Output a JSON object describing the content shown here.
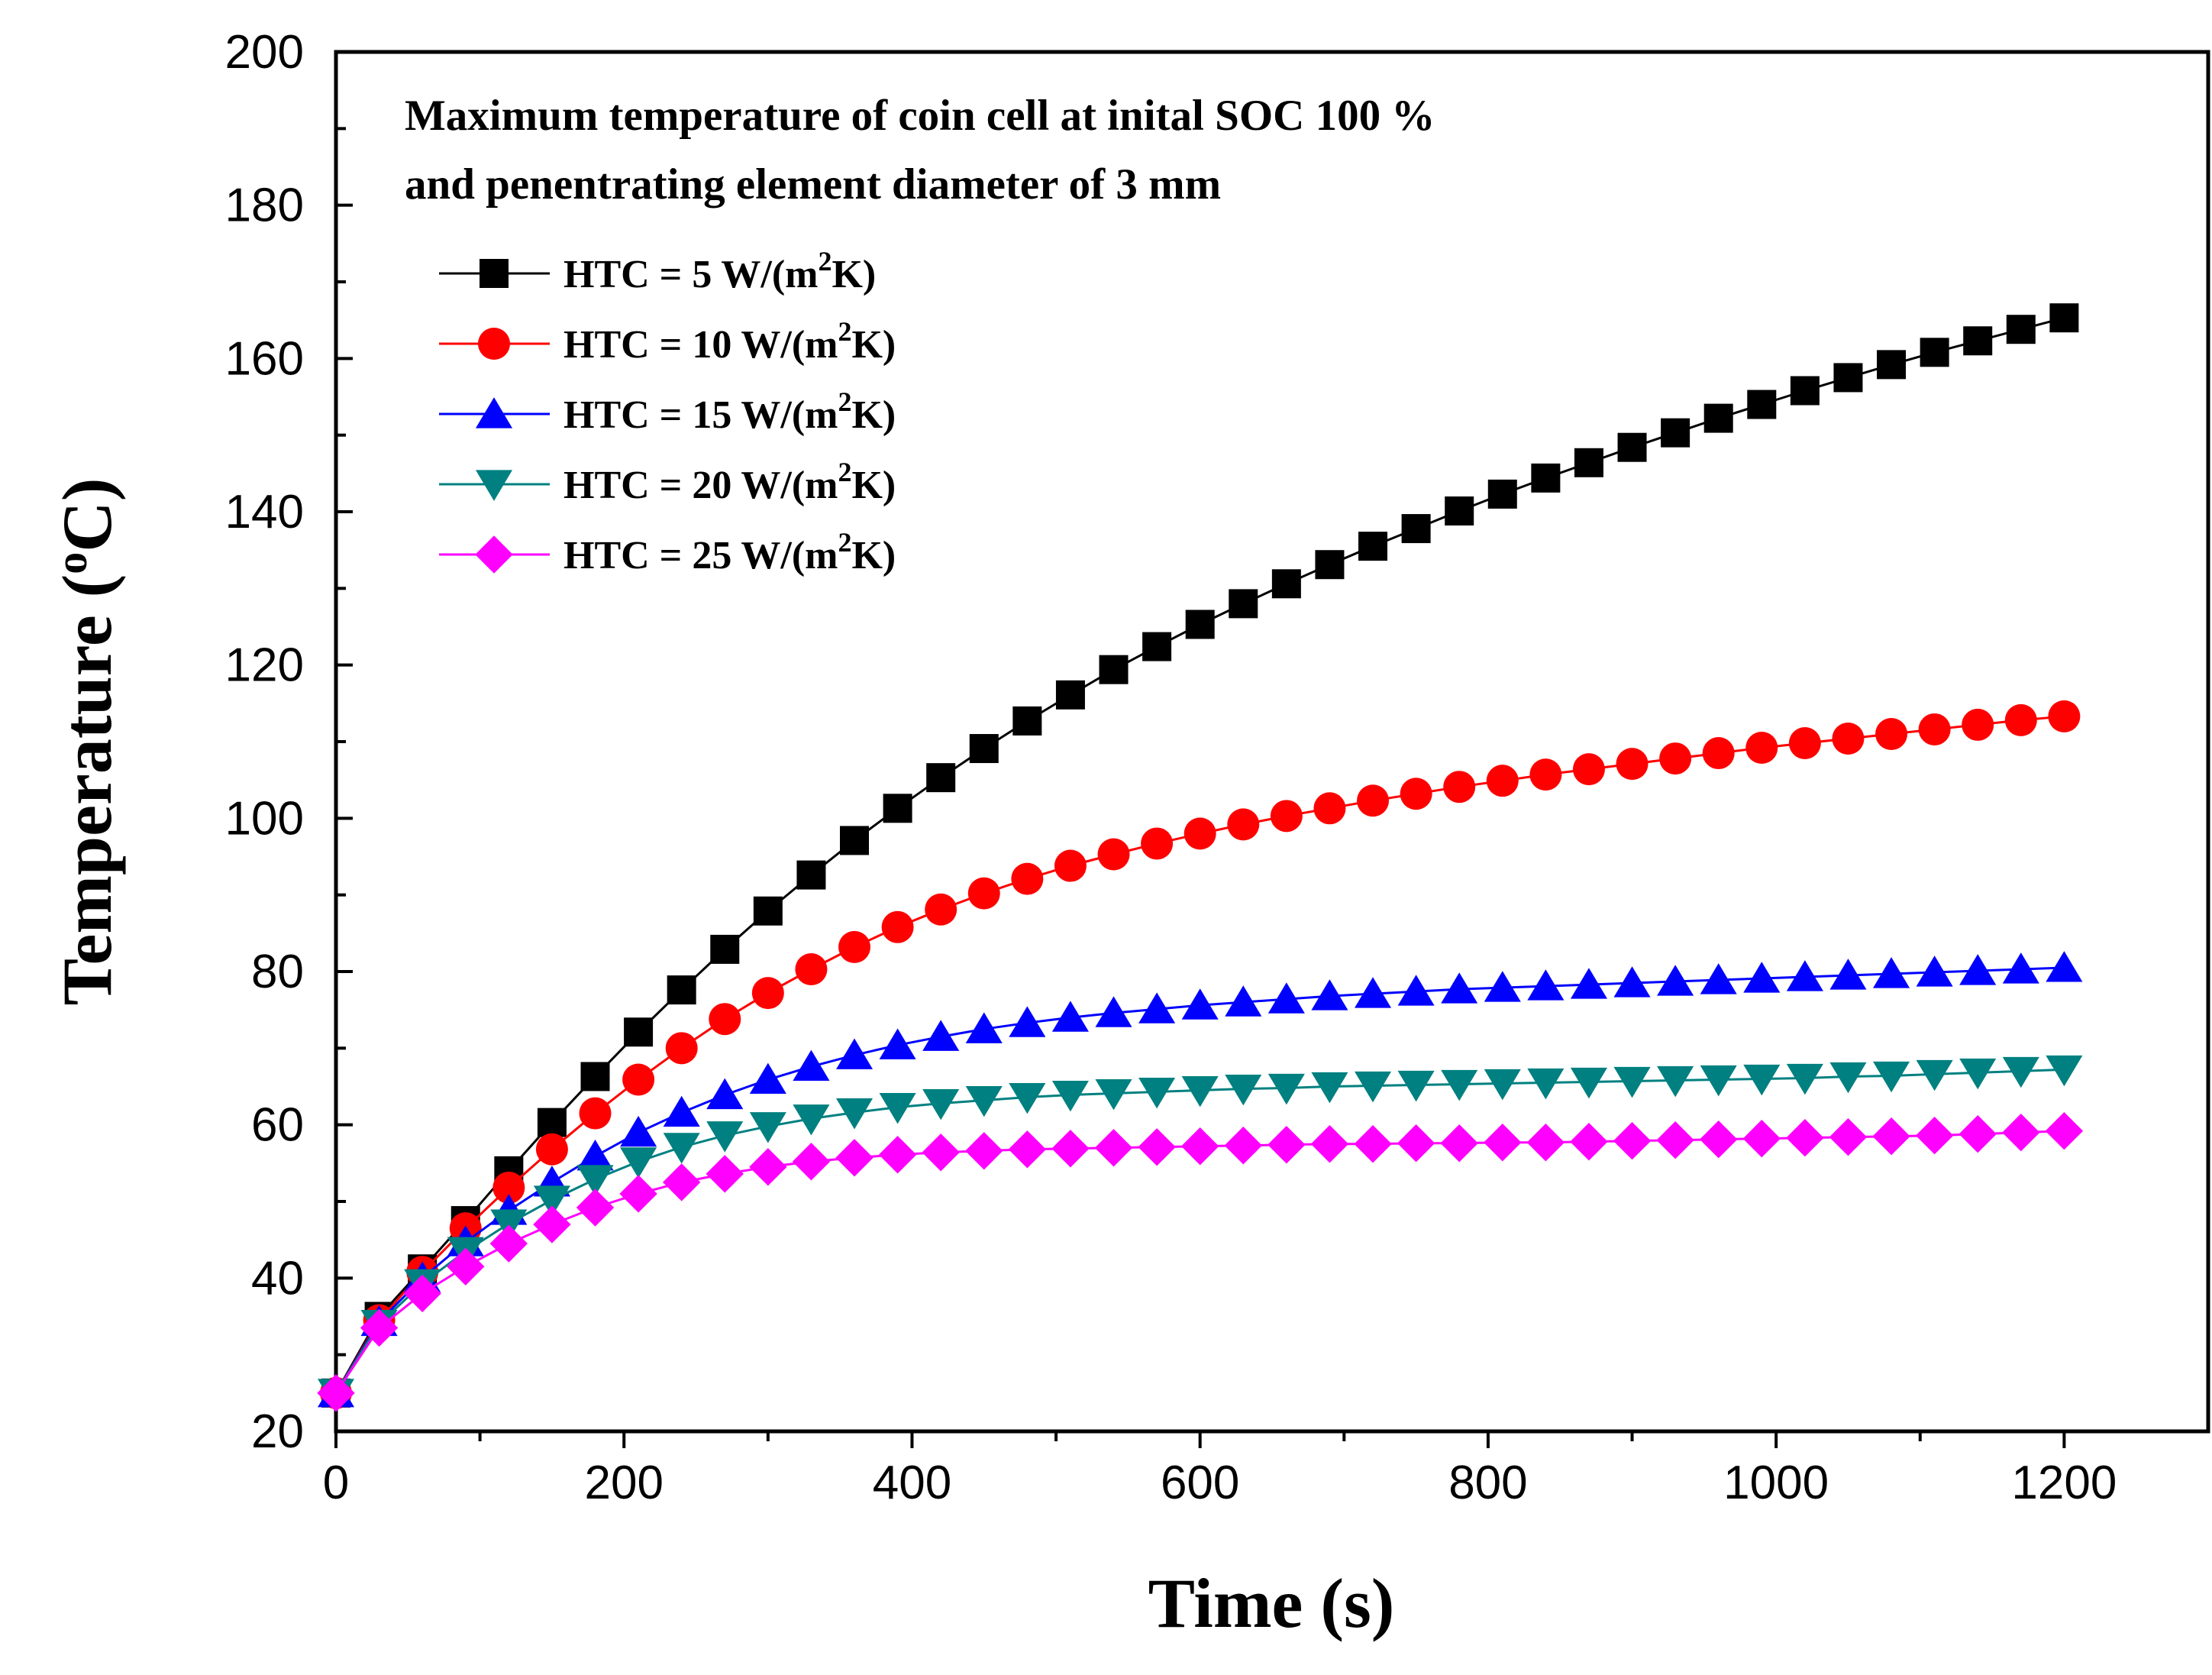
{
  "chart_data": {
    "type": "line",
    "title": "",
    "annotation_lines": [
      "Maximum temperature of coin cell at inital SOC 100 %",
      "and penentrating element diameter of 3 mm"
    ],
    "xlabel": "Time (s)",
    "ylabel": {
      "prefix": "Temperature (",
      "superscript": "o",
      "suffix": "C)"
    },
    "xlim": [
      0,
      1300
    ],
    "ylim": [
      20,
      200
    ],
    "xticks": [
      0,
      200,
      400,
      600,
      800,
      1000,
      1200
    ],
    "xtick_labels": [
      "0",
      "200",
      "400",
      "600",
      "800",
      "1000",
      "1200"
    ],
    "yticks": [
      20,
      40,
      60,
      80,
      100,
      120,
      140,
      160,
      180,
      200
    ],
    "ytick_labels": [
      "20",
      "40",
      "60",
      "80",
      "100",
      "120",
      "140",
      "160",
      "180",
      "200"
    ],
    "legend_position": "top-left",
    "x": [
      0,
      30,
      60,
      90,
      120,
      150,
      180,
      210,
      240,
      270,
      300,
      330,
      360,
      390,
      420,
      450,
      480,
      510,
      540,
      570,
      600,
      630,
      660,
      690,
      720,
      750,
      780,
      810,
      840,
      870,
      900,
      930,
      960,
      990,
      1020,
      1050,
      1080,
      1110,
      1140,
      1170,
      1200
    ],
    "series": [
      {
        "name": "HTC = 5 W/(m2K)",
        "legend_prefix": "HTC = 5 W/(m",
        "legend_sup": "2",
        "legend_suffix": "K)",
        "color": "#000000",
        "marker": "square",
        "values": [
          25,
          35,
          41.2,
          47.5,
          54,
          60.3,
          66.3,
          72.1,
          77.6,
          82.9,
          87.9,
          92.6,
          97.1,
          101.3,
          105.3,
          109.1,
          112.7,
          116.1,
          119.4,
          122.4,
          125.3,
          128,
          130.6,
          133.1,
          135.5,
          137.8,
          140.1,
          142.3,
          144.4,
          146.4,
          148.4,
          150.3,
          152.2,
          154,
          155.8,
          157.5,
          159.2,
          160.8,
          162.3,
          163.8,
          165.3
        ]
      },
      {
        "name": "HTC = 10 W/(m2K)",
        "legend_prefix": "HTC = 10 W/(m",
        "legend_sup": "2",
        "legend_suffix": "K)",
        "color": "#ff0000",
        "marker": "circle",
        "values": [
          25,
          34.5,
          40.8,
          46.5,
          51.8,
          56.8,
          61.5,
          65.9,
          70,
          73.8,
          77.2,
          80.3,
          83.2,
          85.8,
          88.1,
          90.2,
          92.1,
          93.8,
          95.3,
          96.7,
          98,
          99.2,
          100.3,
          101.3,
          102.3,
          103.2,
          104.1,
          104.9,
          105.7,
          106.4,
          107.1,
          107.8,
          108.5,
          109.2,
          109.8,
          110.4,
          111,
          111.6,
          112.2,
          112.8,
          113.3
        ]
      },
      {
        "name": "HTC = 15 W/(m2K)",
        "legend_prefix": "HTC = 15 W/(m",
        "legend_sup": "2",
        "legend_suffix": "K)",
        "color": "#0000ff",
        "marker": "triangle-up",
        "values": [
          25,
          34.3,
          40,
          44.7,
          48.8,
          52.5,
          55.9,
          59,
          61.6,
          63.9,
          65.9,
          67.6,
          69.1,
          70.4,
          71.5,
          72.5,
          73.3,
          74,
          74.6,
          75.1,
          75.6,
          76,
          76.4,
          76.8,
          77.1,
          77.4,
          77.7,
          77.9,
          78.1,
          78.3,
          78.5,
          78.7,
          78.9,
          79.1,
          79.3,
          79.5,
          79.7,
          79.9,
          80.1,
          80.3,
          80.5
        ]
      },
      {
        "name": "HTC = 20 W/(m2K)",
        "legend_prefix": "HTC = 20 W/(m",
        "legend_sup": "2",
        "legend_suffix": "K)",
        "color": "#008080",
        "marker": "triangle-down",
        "values": [
          25,
          34,
          39.3,
          43.5,
          47.1,
          50.2,
          52.9,
          55.2,
          57.1,
          58.6,
          59.8,
          60.8,
          61.6,
          62.3,
          62.8,
          63.2,
          63.6,
          63.9,
          64.1,
          64.3,
          64.5,
          64.7,
          64.8,
          65,
          65.1,
          65.2,
          65.3,
          65.4,
          65.5,
          65.6,
          65.7,
          65.8,
          65.9,
          66,
          66.1,
          66.3,
          66.4,
          66.6,
          66.8,
          67,
          67.2
        ]
      },
      {
        "name": "HTC = 25 W/(m2K)",
        "legend_prefix": "HTC = 25 W/(m",
        "legend_sup": "2",
        "legend_suffix": "K)",
        "color": "#ff00ff",
        "marker": "diamond",
        "values": [
          25,
          33.5,
          38,
          41.5,
          44.5,
          47,
          49.2,
          51,
          52.5,
          53.6,
          54.5,
          55.2,
          55.7,
          56.1,
          56.4,
          56.6,
          56.8,
          56.9,
          57,
          57.1,
          57.2,
          57.3,
          57.4,
          57.5,
          57.5,
          57.6,
          57.6,
          57.7,
          57.7,
          57.8,
          57.9,
          58,
          58.1,
          58.2,
          58.3,
          58.4,
          58.5,
          58.6,
          58.8,
          59,
          59.2
        ]
      }
    ]
  }
}
